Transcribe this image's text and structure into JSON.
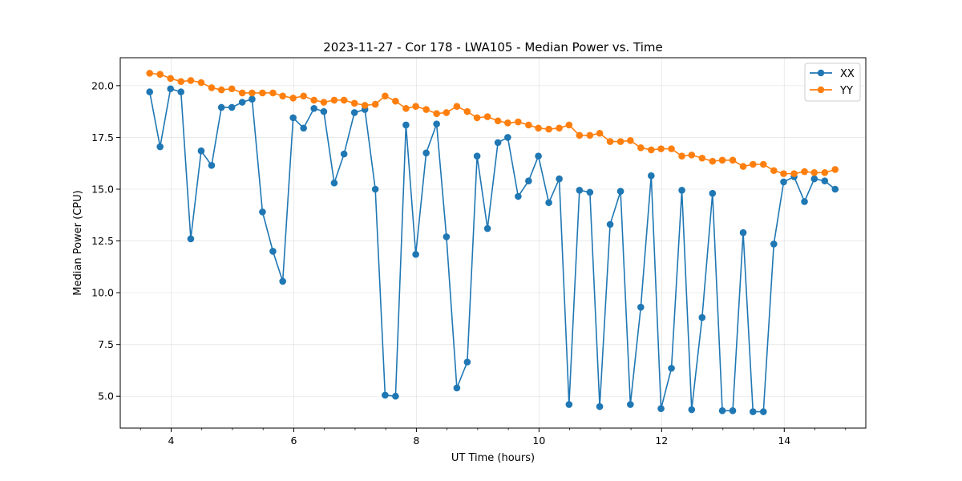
{
  "chart_data": {
    "type": "line",
    "title": "2023-11-27 - Cor 178 - LWA105 - Median Power vs. Time",
    "xlabel": "UT Time (hours)",
    "ylabel": "Median Power (CPU)",
    "xlim": [
      3.17,
      15.33
    ],
    "ylim": [
      3.46,
      21.35
    ],
    "xticks": [
      4,
      6,
      8,
      10,
      12,
      14
    ],
    "xtick_labels": [
      "4",
      "6",
      "8",
      "10",
      "12",
      "14"
    ],
    "yticks": [
      5.0,
      7.5,
      10.0,
      12.5,
      15.0,
      17.5,
      20.0
    ],
    "ytick_labels": [
      "5.0",
      "7.5",
      "10.0",
      "12.5",
      "15.0",
      "17.5",
      "20.0"
    ],
    "grid": true,
    "legend_position": "top-right",
    "x": [
      3.65,
      3.82,
      3.99,
      4.16,
      4.32,
      4.49,
      4.66,
      4.82,
      4.99,
      5.16,
      5.32,
      5.49,
      5.66,
      5.82,
      5.99,
      6.16,
      6.33,
      6.49,
      6.66,
      6.82,
      6.99,
      7.16,
      7.33,
      7.49,
      7.66,
      7.83,
      7.99,
      8.16,
      8.33,
      8.49,
      8.66,
      8.83,
      8.99,
      9.16,
      9.33,
      9.49,
      9.66,
      9.83,
      9.99,
      10.16,
      10.33,
      10.49,
      10.66,
      10.83,
      10.99,
      11.16,
      11.33,
      11.49,
      11.66,
      11.83,
      11.99,
      12.16,
      12.33,
      12.49,
      12.66,
      12.83,
      12.99,
      13.16,
      13.33,
      13.49,
      13.66,
      13.83,
      13.99,
      14.16,
      14.33,
      14.49,
      14.66,
      14.83
    ],
    "series": [
      {
        "name": "XX",
        "color": "#1f77b4",
        "values": [
          19.7,
          17.05,
          19.85,
          19.7,
          12.6,
          16.85,
          16.15,
          18.95,
          18.95,
          19.2,
          19.35,
          13.9,
          12.0,
          10.55,
          18.45,
          17.95,
          18.9,
          18.75,
          15.3,
          16.7,
          18.7,
          18.85,
          15.0,
          5.05,
          5.0,
          18.1,
          11.85,
          16.75,
          18.15,
          12.7,
          5.4,
          6.65,
          16.6,
          13.1,
          17.25,
          17.5,
          14.65,
          15.4,
          16.6,
          14.35,
          15.5,
          4.6,
          14.95,
          14.85,
          4.5,
          13.3,
          14.9,
          4.6,
          9.3,
          15.65,
          4.4,
          6.35,
          14.95,
          4.35,
          8.8,
          14.8,
          4.3,
          4.3,
          12.9,
          4.25,
          4.25,
          12.35,
          15.35,
          15.6,
          14.4,
          15.5,
          15.4,
          15.0
        ]
      },
      {
        "name": "YY",
        "color": "#ff7f0e",
        "values": [
          20.6,
          20.55,
          20.35,
          20.2,
          20.25,
          20.15,
          19.9,
          19.8,
          19.85,
          19.65,
          19.65,
          19.65,
          19.65,
          19.5,
          19.4,
          19.5,
          19.3,
          19.2,
          19.3,
          19.3,
          19.15,
          19.05,
          19.1,
          19.5,
          19.25,
          18.9,
          19.0,
          18.85,
          18.65,
          18.7,
          19.0,
          18.75,
          18.45,
          18.5,
          18.3,
          18.2,
          18.25,
          18.1,
          17.95,
          17.9,
          17.95,
          18.1,
          17.6,
          17.6,
          17.7,
          17.3,
          17.3,
          17.35,
          17.0,
          16.9,
          16.95,
          16.95,
          16.6,
          16.65,
          16.5,
          16.35,
          16.4,
          16.4,
          16.1,
          16.2,
          16.2,
          15.9,
          15.75,
          15.75,
          15.85,
          15.8,
          15.8,
          15.95
        ]
      }
    ]
  }
}
